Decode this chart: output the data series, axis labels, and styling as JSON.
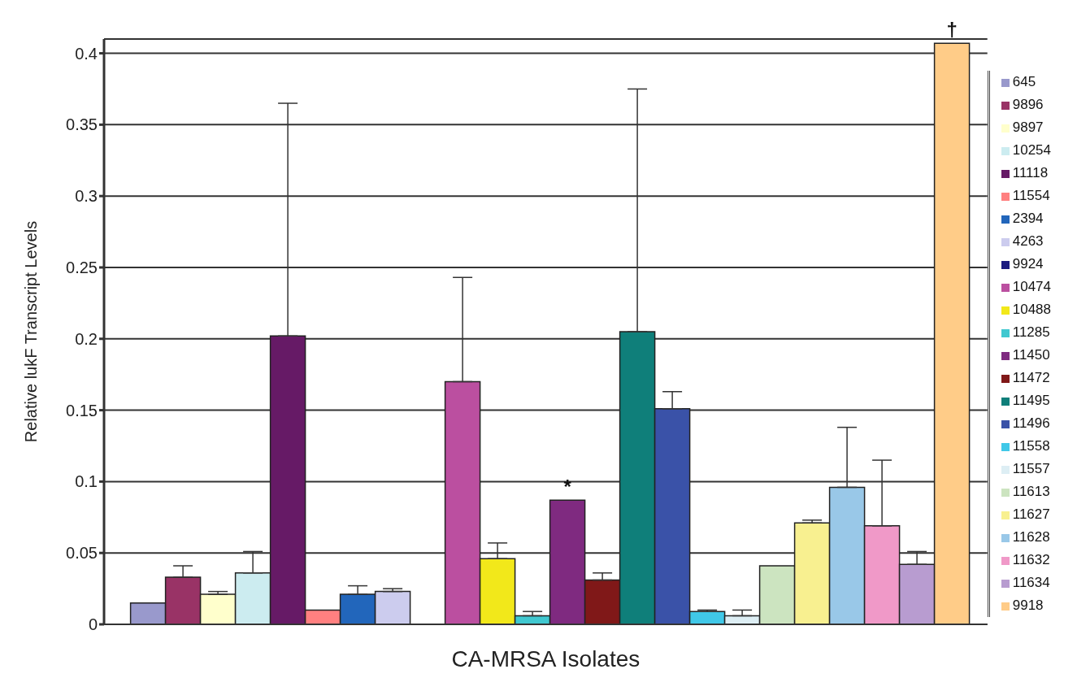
{
  "chart_data": {
    "type": "bar",
    "xlabel": "CA-MRSA Isolates",
    "ylabel": "Relative lukF Transcript Levels",
    "categories": [
      null
    ],
    "ylim": [
      0,
      0.41
    ],
    "yticks": [
      0,
      0.05,
      0.1,
      0.15,
      0.2,
      0.25,
      0.3,
      0.35,
      0.4
    ],
    "grid": "y",
    "legend": "right",
    "series": [
      {
        "name": "645",
        "color": "#9999cc",
        "values": [
          0.015
        ],
        "errors": [
          null
        ]
      },
      {
        "name": "9896",
        "color": "#993366",
        "values": [
          0.033
        ],
        "errors": [
          [
            0.033,
            0.041
          ]
        ]
      },
      {
        "name": "9897",
        "color": "#ffffcc",
        "values": [
          0.021
        ],
        "errors": [
          [
            0.021,
            0.023
          ]
        ]
      },
      {
        "name": "10254",
        "color": "#ccecf0",
        "values": [
          0.036
        ],
        "errors": [
          [
            0.036,
            0.051
          ]
        ]
      },
      {
        "name": "11118",
        "color": "#661a66",
        "values": [
          0.202
        ],
        "errors": [
          [
            0.202,
            0.365
          ]
        ]
      },
      {
        "name": "11554",
        "color": "#ff8080",
        "values": [
          0.01
        ],
        "errors": [
          null
        ]
      },
      {
        "name": "2394",
        "color": "#2266bb",
        "values": [
          0.021
        ],
        "errors": [
          [
            0.021,
            0.027
          ]
        ]
      },
      {
        "name": "4263",
        "color": "#ccccee",
        "values": [
          0.023
        ],
        "errors": [
          [
            0.023,
            0.025
          ]
        ]
      },
      {
        "name": "9924",
        "color": "#1a1a80",
        "values": [
          0
        ],
        "errors": [
          null
        ]
      },
      {
        "name": "10474",
        "color": "#bb4fa0",
        "values": [
          0.17
        ],
        "errors": [
          [
            0.17,
            0.243
          ]
        ]
      },
      {
        "name": "10488",
        "color": "#f2e81a",
        "values": [
          0.046
        ],
        "errors": [
          [
            0.046,
            0.057
          ]
        ]
      },
      {
        "name": "11285",
        "color": "#40c8d0",
        "values": [
          0.006
        ],
        "errors": [
          [
            0.006,
            0.009
          ]
        ]
      },
      {
        "name": "11450",
        "color": "#7f2a80",
        "values": [
          0.087
        ],
        "errors": [
          null
        ],
        "value_labels": [
          "*"
        ]
      },
      {
        "name": "11472",
        "color": "#801818",
        "values": [
          0.031
        ],
        "errors": [
          [
            0.031,
            0.036
          ]
        ]
      },
      {
        "name": "11495",
        "color": "#0f7f7a",
        "values": [
          0.205
        ],
        "errors": [
          [
            0.205,
            0.375
          ]
        ]
      },
      {
        "name": "11496",
        "color": "#3a52a8",
        "values": [
          0.151
        ],
        "errors": [
          [
            0.151,
            0.163
          ]
        ]
      },
      {
        "name": "11558",
        "color": "#40c8e8",
        "values": [
          0.009
        ],
        "errors": [
          [
            0.009,
            0.01
          ]
        ]
      },
      {
        "name": "11557",
        "color": "#ddeef4",
        "values": [
          0.006
        ],
        "errors": [
          [
            0.006,
            0.01
          ]
        ]
      },
      {
        "name": "11613",
        "color": "#cce4c0",
        "values": [
          0.041
        ],
        "errors": [
          null
        ]
      },
      {
        "name": "11627",
        "color": "#f8f090",
        "values": [
          0.071
        ],
        "errors": [
          [
            0.071,
            0.073
          ]
        ]
      },
      {
        "name": "11628",
        "color": "#99c8e8",
        "values": [
          0.096
        ],
        "errors": [
          [
            0.096,
            0.138
          ]
        ]
      },
      {
        "name": "11632",
        "color": "#f099c8",
        "values": [
          0.069
        ],
        "errors": [
          [
            0.069,
            0.115
          ]
        ]
      },
      {
        "name": "11634",
        "color": "#b89cd0",
        "values": [
          0.042
        ],
        "errors": [
          [
            0.042,
            0.051
          ]
        ]
      },
      {
        "name": "9918",
        "color": "#ffcc88",
        "values": [
          0.407
        ],
        "errors": [
          null
        ],
        "value_labels": [
          "†"
        ]
      }
    ]
  }
}
